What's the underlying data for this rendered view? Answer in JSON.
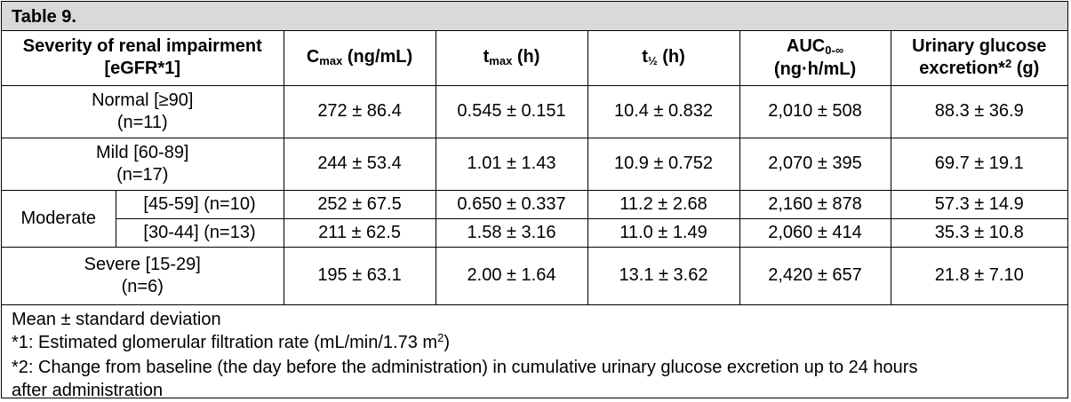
{
  "title": "Table 9.",
  "header": {
    "severity_line1": "Severity of renal impairment",
    "severity_line2_pre": "[eGFR*",
    "severity_line2_num": "1",
    "severity_line2_post": "]",
    "cmax_main": "C",
    "cmax_sub": "max",
    "cmax_unit": " (ng/mL)",
    "tmax_main": "t",
    "tmax_sub": "max",
    "tmax_unit": " (h)",
    "thalf_main": "t",
    "thalf_sub": "½",
    "thalf_unit": " (h)",
    "auc_main": "AUC",
    "auc_sub": "0-∞",
    "auc_unit": "(ng·h/mL)",
    "urinary_line1": "Urinary glucose",
    "urinary_line2_pre": "excretion*",
    "urinary_line2_sup": "2",
    "urinary_line2_post": " (g)"
  },
  "rows": [
    {
      "label_line1": "Normal [≥90]",
      "label_line2": "(n=11)",
      "cmax": "272 ± 86.4",
      "tmax": "0.545 ± 0.151",
      "thalf": "10.4 ± 0.832",
      "auc": "2,010 ± 508",
      "urinary": "88.3 ± 36.9"
    },
    {
      "label_line1": "Mild [60-89]",
      "label_line2": "(n=17)",
      "cmax": "244 ± 53.4",
      "tmax": "1.01 ± 1.43",
      "thalf": "10.9 ± 0.752",
      "auc": "2,070 ± 395",
      "urinary": "69.7 ± 19.1"
    },
    {
      "group": "Moderate",
      "label": "[45-59] (n=10)",
      "cmax": "252 ± 67.5",
      "tmax": "0.650 ± 0.337",
      "thalf": "11.2 ± 2.68",
      "auc": "2,160 ± 878",
      "urinary": "57.3 ± 14.9"
    },
    {
      "label": "[30-44] (n=13)",
      "cmax": "211 ± 62.5",
      "tmax": "1.58 ± 3.16",
      "thalf": "11.0 ± 1.49",
      "auc": "2,060 ± 414",
      "urinary": "35.3 ± 10.8"
    },
    {
      "label_line1": "Severe [15-29]",
      "label_line2": "(n=6)",
      "cmax": "195 ± 63.1",
      "tmax": "2.00 ± 1.64",
      "thalf": "13.1 ± 3.62",
      "auc": "2,420 ± 657",
      "urinary": "21.8 ± 7.10"
    }
  ],
  "notes": {
    "line1": "Mean ± standard deviation",
    "line2_pre": "*1: Estimated glomerular filtration rate (mL/min/1.73 m",
    "line2_sup": "2",
    "line2_post": ")",
    "line3": "*2: Change from baseline (the day before the administration) in cumulative urinary glucose excretion up to 24 hours",
    "line4": "after administration"
  },
  "colors": {
    "title_background": "#d9d9d9",
    "border": "#000000"
  }
}
